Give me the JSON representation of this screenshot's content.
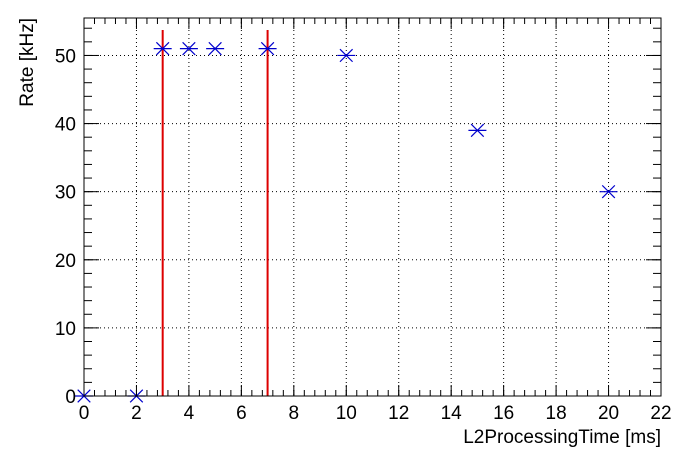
{
  "chart_data": {
    "type": "scatter",
    "title": "",
    "xlabel": "L2ProcessingTime [ms]",
    "ylabel": "Rate [kHz]",
    "xlim": [
      0,
      22
    ],
    "ylim": [
      0,
      55.5
    ],
    "x_ticks": [
      0,
      2,
      4,
      6,
      8,
      10,
      12,
      14,
      16,
      18,
      20,
      22
    ],
    "y_ticks": [
      0,
      10,
      20,
      30,
      40,
      50
    ],
    "grid": true,
    "marker": "asterisk",
    "marker_color": "#0000cc",
    "series": [
      {
        "points": [
          {
            "x": 0,
            "y": 0
          },
          {
            "x": 2,
            "y": 0
          },
          {
            "x": 3,
            "y": 51
          },
          {
            "x": 4,
            "y": 51
          },
          {
            "x": 5,
            "y": 51
          },
          {
            "x": 7,
            "y": 51
          },
          {
            "x": 10,
            "y": 50
          },
          {
            "x": 15,
            "y": 39
          },
          {
            "x": 20,
            "y": 30
          }
        ]
      }
    ],
    "vertical_lines": [
      {
        "x": 3,
        "color": "#dd0000"
      },
      {
        "x": 7,
        "color": "#dd0000"
      }
    ]
  }
}
